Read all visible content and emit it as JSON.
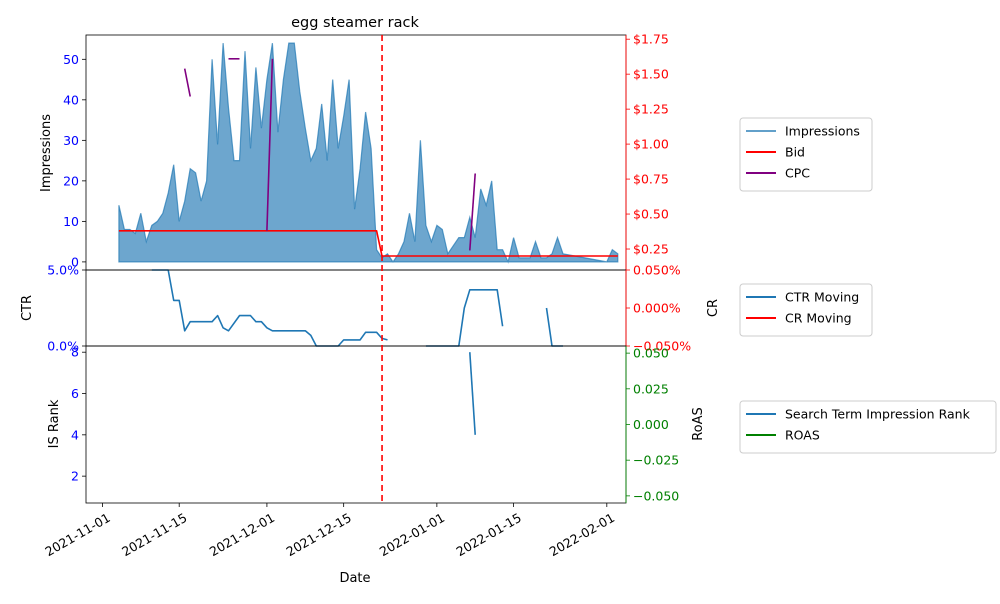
{
  "chart_data": {
    "type": "line",
    "title": "egg steamer rack",
    "xlabel": "Date",
    "x_ticks": [
      "2021-11-01",
      "2021-11-15",
      "2021-12-01",
      "2021-12-15",
      "2022-01-01",
      "2022-01-15",
      "2022-02-01"
    ],
    "event_line_date": "2021-12-22",
    "colors": {
      "impressions": "#1f77b4",
      "bid": "#ff0000",
      "cpc": "#800080",
      "ctr": "#1f77b4",
      "cr": "#ff0000",
      "is_rank": "#1f77b4",
      "roas": "#008000",
      "left_tick": "#0000ff",
      "right_tick_red": "#ff0000",
      "right_tick_green": "#008000"
    },
    "panels": [
      {
        "name": "impressions-panel",
        "ylabel": "Impressions",
        "y_ticks": [
          "0",
          "10",
          "20",
          "30",
          "40",
          "50"
        ],
        "ylim": [
          -2,
          56
        ],
        "y2_ticks": [
          "$0.25",
          "$0.50",
          "$0.75",
          "$1.00",
          "$1.25",
          "$1.50",
          "$1.75"
        ],
        "y2lim": [
          0.1,
          1.78
        ],
        "legend": [
          "Impressions",
          "Bid",
          "CPC"
        ],
        "series": [
          {
            "name": "Impressions",
            "axis": "left",
            "style": "area",
            "points": [
              [
                "2021-11-04",
                14
              ],
              [
                "2021-11-05",
                8
              ],
              [
                "2021-11-06",
                8
              ],
              [
                "2021-11-07",
                7
              ],
              [
                "2021-11-08",
                12
              ],
              [
                "2021-11-09",
                5
              ],
              [
                "2021-11-10",
                9
              ],
              [
                "2021-11-11",
                10
              ],
              [
                "2021-11-12",
                12
              ],
              [
                "2021-11-13",
                17
              ],
              [
                "2021-11-14",
                24
              ],
              [
                "2021-11-15",
                10
              ],
              [
                "2021-11-16",
                15
              ],
              [
                "2021-11-17",
                23
              ],
              [
                "2021-11-18",
                22
              ],
              [
                "2021-11-19",
                15
              ],
              [
                "2021-11-20",
                20
              ],
              [
                "2021-11-21",
                50
              ],
              [
                "2021-11-22",
                29
              ],
              [
                "2021-11-23",
                54
              ],
              [
                "2021-11-24",
                38
              ],
              [
                "2021-11-25",
                25
              ],
              [
                "2021-11-26",
                25
              ],
              [
                "2021-11-27",
                52
              ],
              [
                "2021-11-28",
                28
              ],
              [
                "2021-11-29",
                48
              ],
              [
                "2021-11-30",
                33
              ],
              [
                "2021-12-01",
                45
              ],
              [
                "2021-12-02",
                54
              ],
              [
                "2021-12-03",
                32
              ],
              [
                "2021-12-04",
                45
              ],
              [
                "2021-12-05",
                54
              ],
              [
                "2021-12-06",
                54
              ],
              [
                "2021-12-07",
                42
              ],
              [
                "2021-12-08",
                33
              ],
              [
                "2021-12-09",
                25
              ],
              [
                "2021-12-10",
                28
              ],
              [
                "2021-12-11",
                39
              ],
              [
                "2021-12-12",
                25
              ],
              [
                "2021-12-13",
                45
              ],
              [
                "2021-12-14",
                28
              ],
              [
                "2021-12-15",
                36
              ],
              [
                "2021-12-16",
                45
              ],
              [
                "2021-12-17",
                13
              ],
              [
                "2021-12-18",
                23
              ],
              [
                "2021-12-19",
                37
              ],
              [
                "2021-12-20",
                28
              ],
              [
                "2021-12-21",
                3
              ],
              [
                "2021-12-22",
                1
              ],
              [
                "2021-12-23",
                2
              ],
              [
                "2021-12-24",
                0
              ],
              [
                "2021-12-25",
                2
              ],
              [
                "2021-12-26",
                5
              ],
              [
                "2021-12-27",
                12
              ],
              [
                "2021-12-28",
                5
              ],
              [
                "2021-12-29",
                30
              ],
              [
                "2021-12-30",
                9
              ],
              [
                "2021-12-31",
                5
              ],
              [
                "2022-01-01",
                9
              ],
              [
                "2022-01-02",
                8
              ],
              [
                "2022-01-03",
                2
              ],
              [
                "2022-01-04",
                4
              ],
              [
                "2022-01-05",
                6
              ],
              [
                "2022-01-06",
                6
              ],
              [
                "2022-01-07",
                11
              ],
              [
                "2022-01-08",
                6
              ],
              [
                "2022-01-09",
                18
              ],
              [
                "2022-01-10",
                14
              ],
              [
                "2022-01-11",
                20
              ],
              [
                "2022-01-12",
                3
              ],
              [
                "2022-01-13",
                3
              ],
              [
                "2022-01-14",
                0
              ],
              [
                "2022-01-15",
                6
              ],
              [
                "2022-01-16",
                1
              ],
              [
                "2022-01-17",
                1
              ],
              [
                "2022-01-18",
                1
              ],
              [
                "2022-01-19",
                5
              ],
              [
                "2022-01-20",
                1
              ],
              [
                "2022-01-21",
                1
              ],
              [
                "2022-01-22",
                2
              ],
              [
                "2022-01-23",
                6
              ],
              [
                "2022-01-24",
                2
              ],
              [
                "2022-02-01",
                0
              ],
              [
                "2022-02-02",
                3
              ],
              [
                "2022-02-03",
                2
              ]
            ]
          },
          {
            "name": "Bid",
            "axis": "right",
            "style": "line",
            "segments": [
              [
                [
                  "2021-11-04",
                  0.38
                ],
                [
                  "2021-12-21",
                  0.38
                ],
                [
                  "2021-12-22",
                  0.2
                ],
                [
                  "2022-02-03",
                  0.2
                ]
              ]
            ]
          },
          {
            "name": "CPC",
            "axis": "right",
            "style": "line",
            "segments": [
              [
                [
                  "2021-11-16",
                  1.54
                ],
                [
                  "2021-11-17",
                  1.34
                ]
              ],
              [
                [
                  "2021-11-24",
                  1.61
                ],
                [
                  "2021-11-26",
                  1.61
                ]
              ],
              [
                [
                  "2021-12-01",
                  0.38
                ],
                [
                  "2021-12-02",
                  1.61
                ]
              ],
              [
                [
                  "2022-01-07",
                  0.24
                ],
                [
                  "2022-01-08",
                  0.79
                ]
              ]
            ]
          }
        ]
      },
      {
        "name": "ctr-panel",
        "ylabel": "CTR",
        "y_ticks": [
          "0.0%",
          "5.0%"
        ],
        "ylim": [
          0,
          5
        ],
        "y2label": "CR",
        "y2_ticks": [
          "−0.050%",
          "0.000%",
          "0.050%"
        ],
        "y2lim": [
          -0.05,
          0.05
        ],
        "legend": [
          "CTR Moving",
          "CR Moving"
        ],
        "series": [
          {
            "name": "CTR Moving",
            "axis": "left",
            "style": "line",
            "segments": [
              [
                [
                  "2021-11-10",
                  5
                ],
                [
                  "2021-11-13",
                  5
                ],
                [
                  "2021-11-14",
                  3
                ],
                [
                  "2021-11-15",
                  3
                ],
                [
                  "2021-11-16",
                  1
                ],
                [
                  "2021-11-17",
                  1.6
                ],
                [
                  "2021-11-21",
                  1.6
                ],
                [
                  "2021-11-22",
                  2
                ],
                [
                  "2021-11-23",
                  1.2
                ],
                [
                  "2021-11-24",
                  1
                ],
                [
                  "2021-11-26",
                  2
                ],
                [
                  "2021-11-28",
                  2
                ],
                [
                  "2021-11-29",
                  1.6
                ],
                [
                  "2021-11-30",
                  1.6
                ],
                [
                  "2021-12-01",
                  1.2
                ],
                [
                  "2021-12-02",
                  1
                ],
                [
                  "2021-12-08",
                  1
                ],
                [
                  "2021-12-09",
                  0.7
                ],
                [
                  "2021-12-10",
                  0
                ],
                [
                  "2021-12-14",
                  0
                ],
                [
                  "2021-12-15",
                  0.4
                ],
                [
                  "2021-12-18",
                  0.4
                ],
                [
                  "2021-12-19",
                  0.9
                ],
                [
                  "2021-12-21",
                  0.9
                ],
                [
                  "2021-12-22",
                  0.5
                ],
                [
                  "2021-12-23",
                  0.4
                ]
              ],
              [
                [
                  "2021-12-30",
                  0
                ],
                [
                  "2022-01-05",
                  0
                ],
                [
                  "2022-01-06",
                  2.5
                ],
                [
                  "2022-01-07",
                  3.7
                ],
                [
                  "2022-01-12",
                  3.7
                ],
                [
                  "2022-01-13",
                  1.3
                ]
              ],
              [
                [
                  "2022-01-21",
                  2.5
                ],
                [
                  "2022-01-22",
                  0
                ],
                [
                  "2022-01-24",
                  0
                ]
              ]
            ]
          },
          {
            "name": "CR Moving",
            "axis": "right",
            "style": "line",
            "segments": []
          }
        ]
      },
      {
        "name": "rank-panel",
        "ylabel": "IS Rank",
        "y_ticks": [
          "2",
          "4",
          "6",
          "8"
        ],
        "ylim": [
          0.7,
          8.3
        ],
        "y2label": "RoAS",
        "y2_ticks": [
          "−0.050",
          "−0.025",
          "0.000",
          "0.025",
          "0.050"
        ],
        "y2lim": [
          -0.055,
          0.055
        ],
        "legend": [
          "Search Term Impression Rank",
          "ROAS"
        ],
        "series": [
          {
            "name": "Search Term Impression Rank",
            "axis": "left",
            "style": "line",
            "segments": [
              [
                [
                  "2022-01-07",
                  8
                ],
                [
                  "2022-01-08",
                  4
                ]
              ]
            ]
          },
          {
            "name": "ROAS",
            "axis": "right",
            "style": "line",
            "segments": []
          }
        ]
      }
    ]
  }
}
